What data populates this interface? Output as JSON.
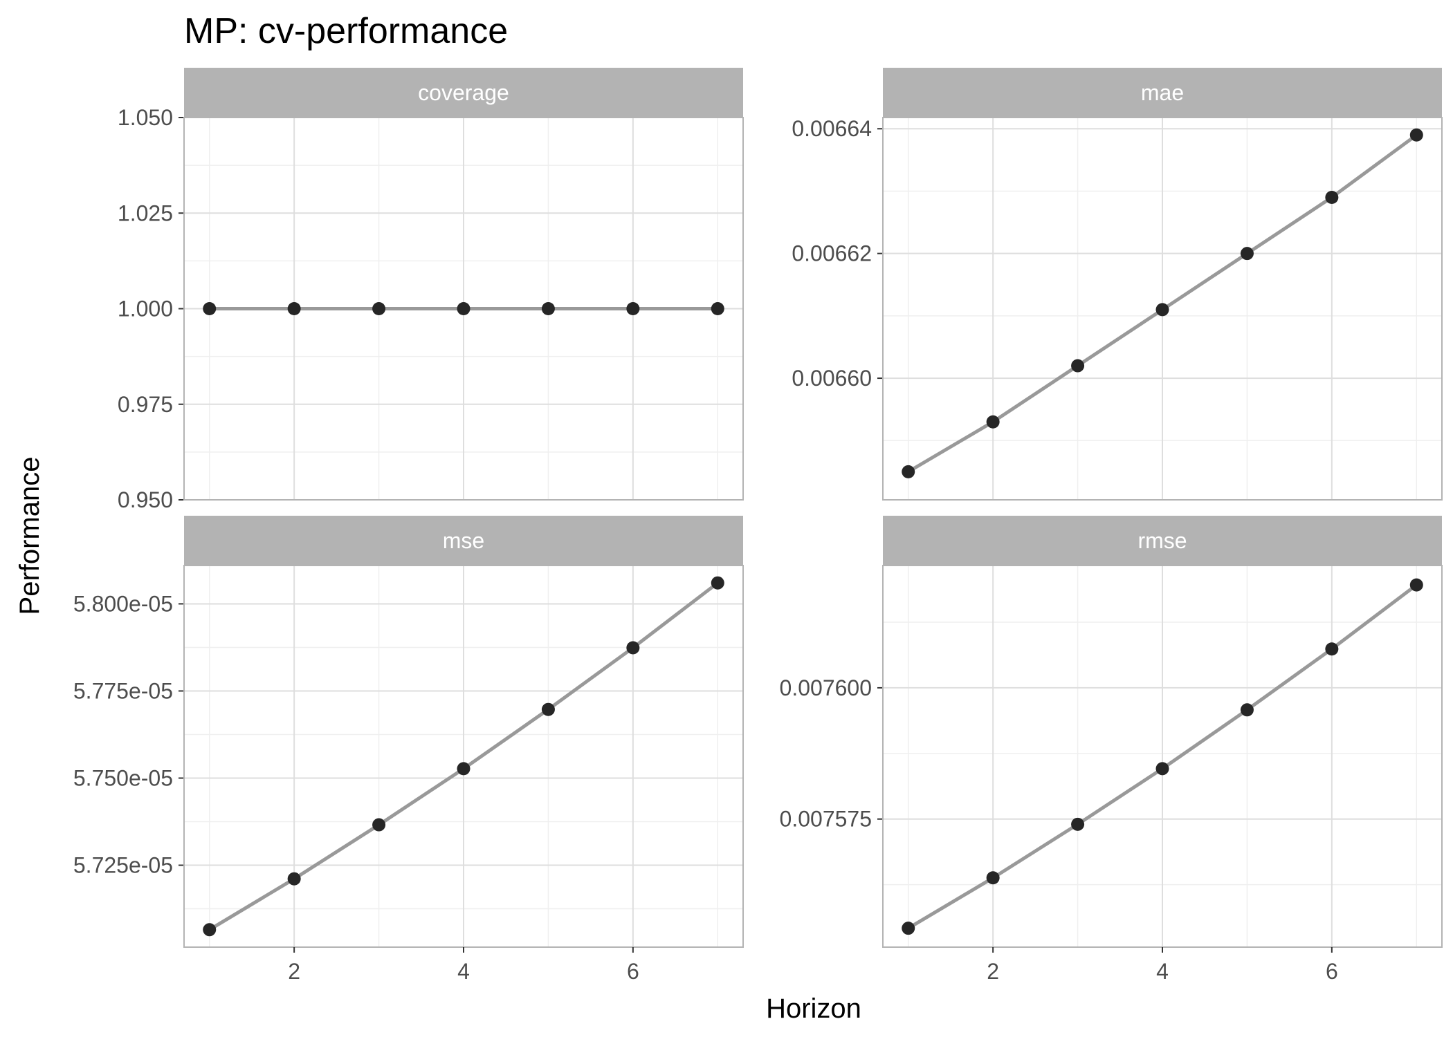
{
  "chart_data": {
    "type": "line",
    "title": "MP: cv-performance",
    "xlabel": "Horizon",
    "ylabel": "Performance",
    "x_ticks": [
      2,
      4,
      6
    ],
    "xlim": [
      0.7,
      7.3
    ],
    "grid": true,
    "facet_layout": "2x2",
    "colors": {
      "line": "#999999",
      "point": "#262626",
      "strip": "#b3b3b3",
      "strip_text": "#ffffff",
      "grid_major": "#dedede",
      "grid_minor": "#efefef",
      "panel_border": "#b3b3b3"
    },
    "panels": [
      {
        "name": "coverage",
        "x": [
          1,
          2,
          3,
          4,
          5,
          6,
          7
        ],
        "y": [
          1.0,
          1.0,
          1.0,
          1.0,
          1.0,
          1.0,
          1.0
        ],
        "ylim": [
          0.95,
          1.05
        ],
        "y_ticks": [
          0.95,
          0.975,
          1.0,
          1.025,
          1.05
        ],
        "y_tick_labels": [
          "0.950",
          "0.975",
          "1.000",
          "1.025",
          "1.050"
        ],
        "show_x_axis": false
      },
      {
        "name": "mae",
        "x": [
          1,
          2,
          3,
          4,
          5,
          6,
          7
        ],
        "y": [
          0.006585,
          0.006593,
          0.006602,
          0.006611,
          0.00662,
          0.006629,
          0.006639
        ],
        "ylim": [
          0.0065805,
          0.0066418
        ],
        "y_ticks": [
          0.0066,
          0.00662,
          0.00664
        ],
        "y_tick_labels": [
          "0.00660",
          "0.00662",
          "0.00664"
        ],
        "show_x_axis": false
      },
      {
        "name": "mse",
        "x": [
          1,
          2,
          3,
          4,
          5,
          6,
          7
        ],
        "y": [
          5.7065e-05,
          5.7211e-05,
          5.7366e-05,
          5.7527e-05,
          5.7697e-05,
          5.7874e-05,
          5.806e-05
        ],
        "ylim": [
          5.7015e-05,
          5.811e-05
        ],
        "y_ticks": [
          5.725e-05,
          5.75e-05,
          5.775e-05,
          5.8e-05
        ],
        "y_tick_labels": [
          "5.725e-05",
          "5.750e-05",
          "5.775e-05",
          "5.800e-05"
        ],
        "show_x_axis": true
      },
      {
        "name": "rmse",
        "x": [
          1,
          2,
          3,
          4,
          5,
          6,
          7
        ],
        "y": [
          0.0075542,
          0.0075638,
          0.007574,
          0.0075846,
          0.0075958,
          0.0076074,
          0.0076196
        ],
        "ylim": [
          0.0075506,
          0.0076233
        ],
        "y_ticks": [
          0.007575,
          0.0076
        ],
        "y_tick_labels": [
          "0.007575",
          "0.007600"
        ],
        "show_x_axis": true
      }
    ]
  }
}
